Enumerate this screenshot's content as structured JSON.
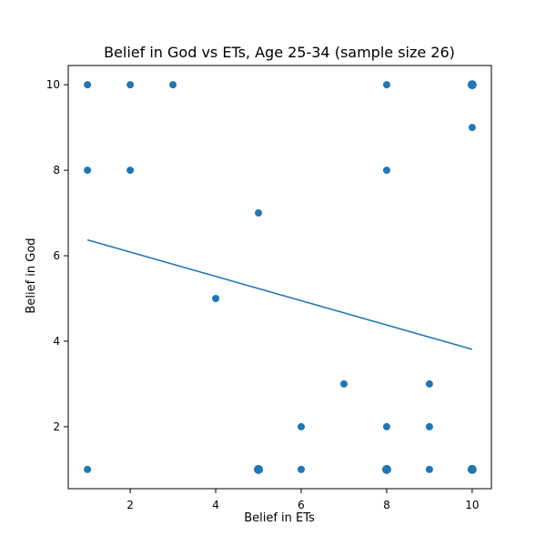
{
  "chart_data": {
    "type": "scatter",
    "title": "Belief in God vs ETs, Age 25-34 (sample size 26)",
    "xlabel": "Belief in ETs",
    "ylabel": "Belief in God",
    "xlim": [
      0.55,
      10.45
    ],
    "ylim": [
      0.55,
      10.45
    ],
    "xticks": [
      2,
      4,
      6,
      8,
      10
    ],
    "yticks": [
      2,
      4,
      6,
      8,
      10
    ],
    "grid": false,
    "color": "#1f77b4",
    "points": [
      {
        "x": 1,
        "y": 10,
        "count": 1
      },
      {
        "x": 2,
        "y": 10,
        "count": 1
      },
      {
        "x": 3,
        "y": 10,
        "count": 1
      },
      {
        "x": 8,
        "y": 10,
        "count": 1
      },
      {
        "x": 10,
        "y": 10,
        "count": 2
      },
      {
        "x": 10,
        "y": 9,
        "count": 1
      },
      {
        "x": 1,
        "y": 8,
        "count": 1
      },
      {
        "x": 2,
        "y": 8,
        "count": 1
      },
      {
        "x": 8,
        "y": 8,
        "count": 1
      },
      {
        "x": 5,
        "y": 7,
        "count": 1
      },
      {
        "x": 4,
        "y": 5,
        "count": 1
      },
      {
        "x": 7,
        "y": 3,
        "count": 1
      },
      {
        "x": 9,
        "y": 3,
        "count": 1
      },
      {
        "x": 6,
        "y": 2,
        "count": 1
      },
      {
        "x": 8,
        "y": 2,
        "count": 1
      },
      {
        "x": 9,
        "y": 2,
        "count": 1
      },
      {
        "x": 1,
        "y": 1,
        "count": 1
      },
      {
        "x": 5,
        "y": 1,
        "count": 2
      },
      {
        "x": 6,
        "y": 1,
        "count": 1
      },
      {
        "x": 8,
        "y": 1,
        "count": 2
      },
      {
        "x": 9,
        "y": 1,
        "count": 1
      },
      {
        "x": 10,
        "y": 1,
        "count": 2
      }
    ],
    "trendline": {
      "x": [
        1,
        10
      ],
      "y": [
        6.37,
        3.81
      ]
    }
  }
}
